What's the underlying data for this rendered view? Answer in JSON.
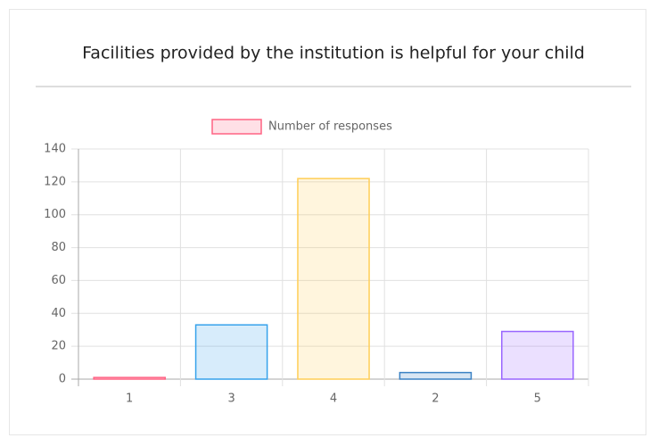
{
  "chart_data": {
    "type": "bar",
    "title": "Facilities provided by the institution is helpful for your child",
    "categories": [
      "1",
      "3",
      "4",
      "2",
      "5"
    ],
    "series": [
      {
        "name": "Number of responses",
        "colors": [
          "#ff6384",
          "#36a2eb",
          "#ffce56",
          "#3b82c4",
          "#9966ff"
        ],
        "values": [
          1,
          33,
          122,
          4,
          29
        ]
      }
    ],
    "ylim": [
      0,
      140
    ],
    "yticks": [
      0,
      20,
      40,
      60,
      80,
      100,
      120,
      140
    ],
    "grid": true
  }
}
